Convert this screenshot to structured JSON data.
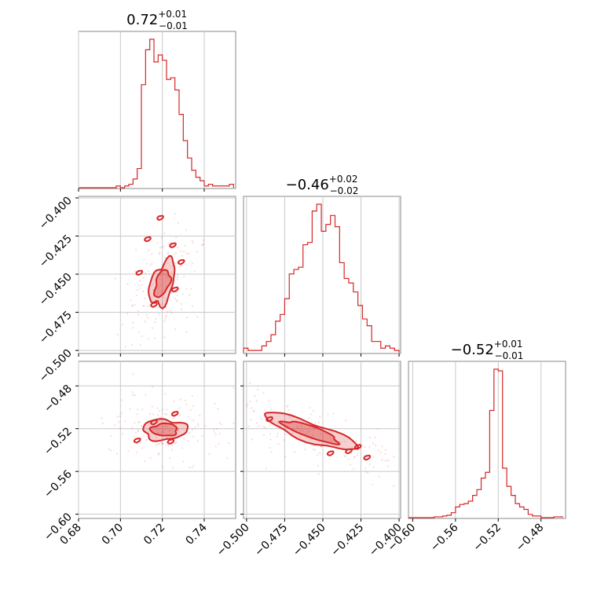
{
  "chart_data": {
    "type": "corner",
    "parameters": [
      {
        "name": "",
        "median": 0.72,
        "title": {
          "value": "0.72",
          "plus": "+0.01",
          "minus": "−0.01"
        }
      },
      {
        "name": "",
        "median": -0.46,
        "title": {
          "value": "−0.46",
          "plus": "+0.02",
          "minus": "−0.02"
        }
      },
      {
        "name": "",
        "median": -0.52,
        "title": {
          "value": "−0.52",
          "plus": "+0.01",
          "minus": "−0.01"
        }
      }
    ],
    "color": "#d62728",
    "grid": true,
    "axes": [
      {
        "param": 0,
        "range": [
          0.68,
          0.755
        ],
        "ticks": [
          0.68,
          0.7,
          0.72,
          0.74
        ],
        "tick_labels": [
          "0.68",
          "0.70",
          "0.72",
          "0.74"
        ]
      },
      {
        "param": 1,
        "range": [
          -0.502,
          -0.399
        ],
        "ticks": [
          -0.5,
          -0.475,
          -0.45,
          -0.425,
          -0.4
        ],
        "tick_labels": [
          "−0.500",
          "−0.475",
          "−0.450",
          "−0.425",
          "−0.400"
        ]
      },
      {
        "param": 2,
        "range": [
          -0.604,
          -0.457
        ],
        "ticks": [
          -0.6,
          -0.56,
          -0.52,
          -0.48
        ],
        "tick_labels": [
          "−0.60",
          "−0.56",
          "−0.52",
          "−0.48"
        ]
      }
    ],
    "histograms": [
      {
        "param": 0,
        "bin_edges": [
          0.68,
          0.682,
          0.684,
          0.686,
          0.688,
          0.69,
          0.692,
          0.694,
          0.696,
          0.698,
          0.7,
          0.702,
          0.704,
          0.706,
          0.708,
          0.71,
          0.712,
          0.714,
          0.716,
          0.718,
          0.72,
          0.722,
          0.724,
          0.726,
          0.728,
          0.73,
          0.732,
          0.734,
          0.736,
          0.738,
          0.74,
          0.742,
          0.744,
          0.746,
          0.748,
          0.75,
          0.752,
          0.754
        ],
        "counts": [
          0,
          0,
          0,
          0,
          0,
          0,
          0,
          0,
          0,
          1,
          0,
          1,
          2,
          5,
          11,
          59,
          79,
          85,
          72,
          76,
          73,
          62,
          63,
          56,
          42,
          27,
          17,
          10,
          6,
          4,
          1,
          2,
          1,
          1,
          1,
          1,
          2
        ]
      },
      {
        "param": 1,
        "bin_edges": [
          -0.502,
          -0.499,
          -0.496,
          -0.493,
          -0.49,
          -0.487,
          -0.484,
          -0.481,
          -0.478,
          -0.475,
          -0.472,
          -0.469,
          -0.466,
          -0.463,
          -0.46,
          -0.457,
          -0.454,
          -0.451,
          -0.448,
          -0.445,
          -0.442,
          -0.439,
          -0.436,
          -0.433,
          -0.43,
          -0.427,
          -0.424,
          -0.421,
          -0.418,
          -0.415,
          -0.412,
          -0.409,
          -0.406,
          -0.403,
          -0.4
        ],
        "counts": [
          2,
          1,
          1,
          1,
          3,
          5,
          8,
          14,
          17,
          24,
          35,
          37,
          38,
          48,
          49,
          63,
          66,
          54,
          57,
          61,
          56,
          40,
          33,
          31,
          27,
          21,
          15,
          12,
          5,
          5,
          2,
          3,
          2,
          1
        ]
      },
      {
        "param": 2,
        "bin_edges": [
          -0.604,
          -0.6,
          -0.596,
          -0.592,
          -0.588,
          -0.584,
          -0.58,
          -0.576,
          -0.572,
          -0.568,
          -0.564,
          -0.56,
          -0.556,
          -0.552,
          -0.548,
          -0.544,
          -0.54,
          -0.536,
          -0.532,
          -0.528,
          -0.524,
          -0.52,
          -0.516,
          -0.512,
          -0.508,
          -0.504,
          -0.5,
          -0.496,
          -0.492,
          -0.488,
          -0.484,
          -0.48,
          -0.476,
          -0.472,
          -0.468,
          -0.464,
          -0.46
        ],
        "counts": [
          0,
          0,
          0,
          0,
          0,
          0,
          1,
          1,
          2,
          3,
          6,
          13,
          16,
          17,
          20,
          27,
          34,
          48,
          55,
          130,
          180,
          178,
          60,
          38,
          27,
          17,
          13,
          10,
          4,
          2,
          2,
          0,
          0,
          0,
          1,
          1
        ]
      }
    ],
    "pairs": [
      {
        "x_param": 0,
        "y_param": 1,
        "center": [
          0.72,
          -0.456
        ],
        "contour_levels": [
          0.39,
          0.86
        ]
      },
      {
        "x_param": 0,
        "y_param": 2,
        "center": [
          0.721,
          -0.521
        ],
        "contour_levels": [
          0.39,
          0.86
        ]
      },
      {
        "x_param": 1,
        "y_param": 2,
        "center": [
          -0.458,
          -0.523
        ],
        "contour_levels": [
          0.39,
          0.86
        ]
      }
    ]
  }
}
